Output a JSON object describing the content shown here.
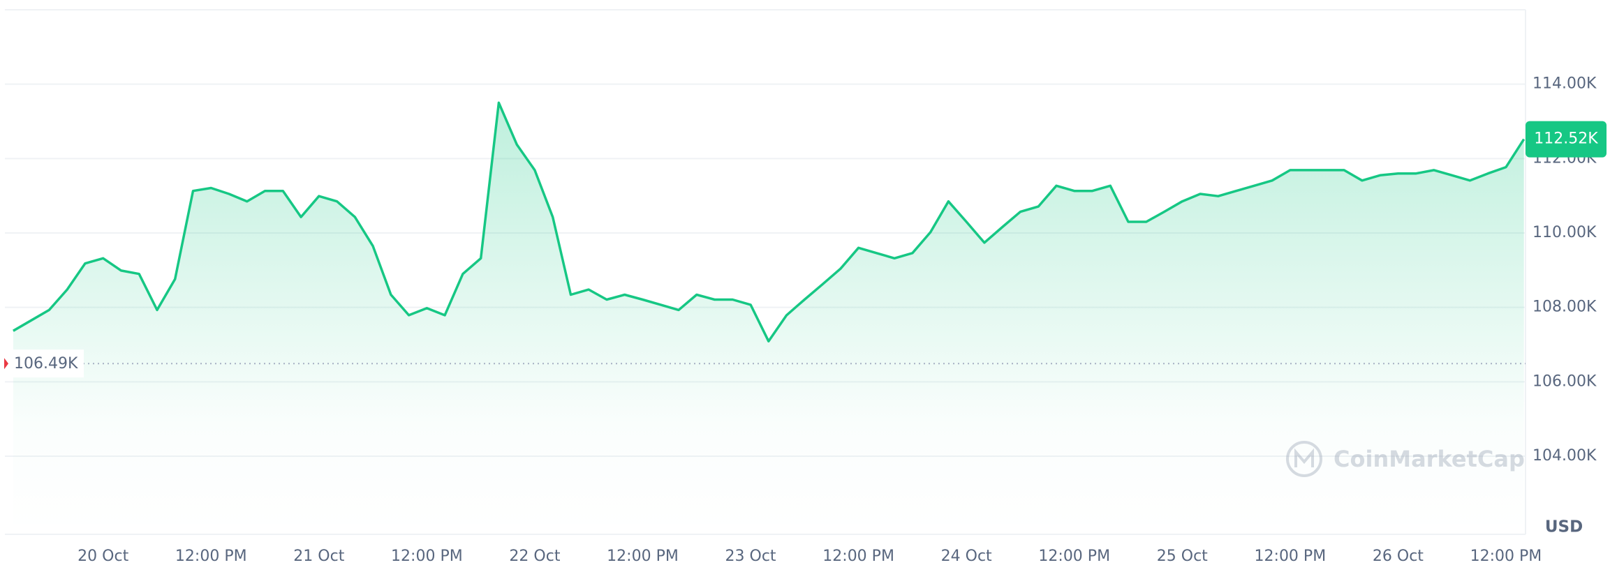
{
  "chart_data": {
    "type": "line",
    "categories": [
      null,
      null,
      null,
      null,
      null,
      "20 Oct",
      null,
      null,
      null,
      null,
      null,
      "12:00 PM",
      null,
      null,
      null,
      null,
      null,
      "21 Oct",
      null,
      null,
      null,
      null,
      null,
      "12:00 PM",
      null,
      null,
      null,
      null,
      null,
      "22 Oct",
      null,
      null,
      null,
      null,
      null,
      "12:00 PM",
      null,
      null,
      null,
      null,
      null,
      "23 Oct",
      null,
      null,
      null,
      null,
      null,
      "12:00 PM",
      null,
      null,
      null,
      null,
      null,
      "24 Oct",
      null,
      null,
      null,
      null,
      null,
      "12:00 PM",
      null,
      null,
      null,
      null,
      null,
      "25 Oct",
      null,
      null,
      null,
      null,
      null,
      "12:00 PM",
      null,
      null,
      null,
      null,
      null,
      "26 Oct",
      null,
      null,
      null,
      null,
      null,
      "12:00 PM",
      null
    ],
    "series": [
      {
        "color": "#16c784",
        "values": [
          107370,
          107650,
          107930,
          108480,
          109180,
          109320,
          108990,
          108900,
          107930,
          108760,
          111130,
          111210,
          111050,
          110850,
          111130,
          111130,
          110430,
          110990,
          110850,
          110430,
          109650,
          108340,
          107790,
          107980,
          107790,
          108900,
          109320,
          113500,
          112380,
          111690,
          110430,
          108340,
          108480,
          108210,
          108340,
          108210,
          108070,
          107930,
          108340,
          108210,
          108210,
          108070,
          107090,
          107790,
          108210,
          108620,
          109040,
          109600,
          109460,
          109320,
          109460,
          110020,
          110850,
          110300,
          109740,
          110160,
          110570,
          110710,
          111270,
          111130,
          111130,
          111270,
          110300,
          110300,
          110570,
          110850,
          111050,
          110990,
          111130,
          111270,
          111410,
          111690,
          111690,
          111690,
          111690,
          111410,
          111550,
          111600,
          111600,
          111690,
          111550,
          111410,
          111600,
          111770,
          112520
        ]
      }
    ],
    "current_price_label": "112.52K",
    "baseline": {
      "value": 106490,
      "label": "106.49K"
    },
    "ylim": [
      101900,
      116000
    ],
    "yticks": [
      {
        "value": 104000,
        "label": "104.00K"
      },
      {
        "value": 106000,
        "label": "106.00K"
      },
      {
        "value": 108000,
        "label": "108.00K"
      },
      {
        "value": 110000,
        "label": "110.00K"
      },
      {
        "value": 112000,
        "label": "112.00K"
      },
      {
        "value": 114000,
        "label": "114.00K"
      }
    ],
    "grid": true,
    "currency": "USD",
    "watermark": "CoinMarketCap"
  }
}
